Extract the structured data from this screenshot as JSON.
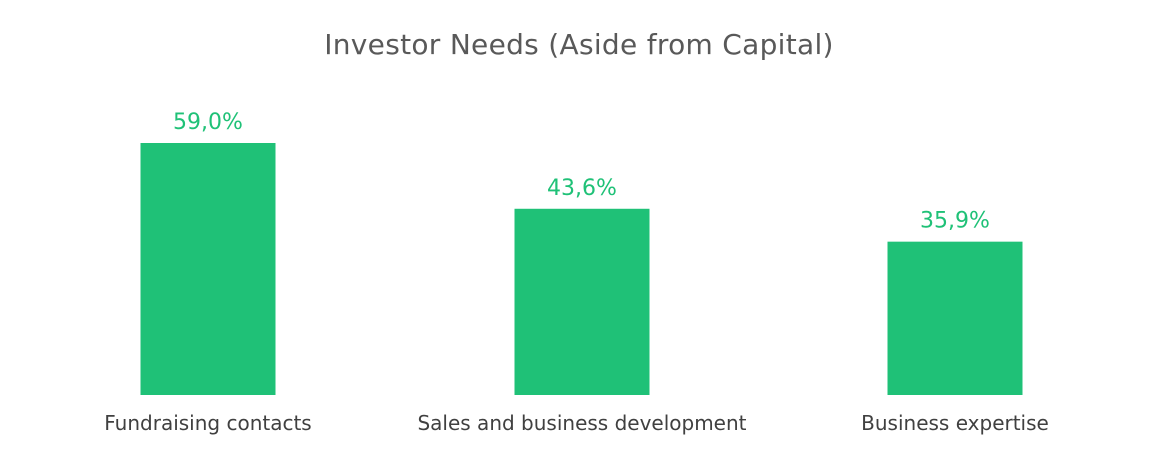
{
  "chart_data": {
    "type": "bar",
    "title": "Investor Needs (Aside from Capital)",
    "categories": [
      "Fundraising contacts",
      "Sales and business development",
      "Business expertise"
    ],
    "values": [
      59.0,
      43.6,
      35.9
    ],
    "value_labels": [
      "59,0%",
      "43,6%",
      "35,9%"
    ],
    "xlabel": "",
    "ylabel": "",
    "ylim": [
      0,
      59.0
    ],
    "grid": false,
    "legend": "none",
    "bar_color": "#1fc177",
    "label_color": "#1fc177"
  }
}
